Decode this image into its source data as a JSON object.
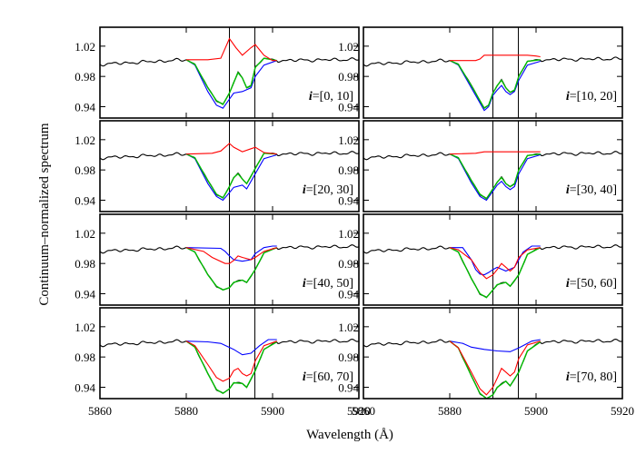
{
  "figure": {
    "ylabel": "Continuum–normalized spectrum",
    "xlabel": "Wavelength (Å)"
  },
  "chart_data": {
    "type": "line",
    "xlim": [
      5860,
      5920
    ],
    "ylim": [
      0.925,
      1.045
    ],
    "x_ticks": [
      5860,
      5880,
      5900,
      5920
    ],
    "x_tick_labels": [
      "5860",
      "5880",
      "5900",
      "5920"
    ],
    "y_ticks": [
      0.94,
      0.98,
      1.02
    ],
    "y_tick_labels": [
      "0.94",
      "0.98",
      "1.02"
    ],
    "reference_lines_x": [
      5890.0,
      5895.9
    ],
    "series_colors": {
      "observed": "#000000",
      "model": "#00bb00",
      "component_red": "#ff0000",
      "component_blue": "#0000ff"
    },
    "panels": [
      {
        "label_prefix": "i",
        "label_range": "=[0, 10]",
        "col": 0,
        "row": 0,
        "red": [
          [
            5880,
            1.002
          ],
          [
            5885,
            1.002
          ],
          [
            5888,
            1.004
          ],
          [
            5890,
            1.03
          ],
          [
            5891.5,
            1.018
          ],
          [
            5893,
            1.008
          ],
          [
            5895,
            1.018
          ],
          [
            5896,
            1.022
          ],
          [
            5898,
            1.008
          ],
          [
            5900,
            1.001
          ],
          [
            5901,
            1.001
          ]
        ],
        "blue": [
          [
            5880,
            1.002
          ],
          [
            5882,
            0.995
          ],
          [
            5885,
            0.96
          ],
          [
            5887,
            0.942
          ],
          [
            5888.5,
            0.938
          ],
          [
            5890,
            0.95
          ],
          [
            5891,
            0.958
          ],
          [
            5893,
            0.96
          ],
          [
            5895,
            0.965
          ],
          [
            5896,
            0.98
          ],
          [
            5898,
            0.995
          ],
          [
            5901,
            1.001
          ]
        ],
        "green": [
          [
            5880,
            1.002
          ],
          [
            5882,
            0.996
          ],
          [
            5885,
            0.965
          ],
          [
            5887,
            0.948
          ],
          [
            5888.5,
            0.943
          ],
          [
            5890,
            0.958
          ],
          [
            5891,
            0.972
          ],
          [
            5892,
            0.985
          ],
          [
            5893,
            0.978
          ],
          [
            5894,
            0.965
          ],
          [
            5895,
            0.968
          ],
          [
            5896,
            0.992
          ],
          [
            5898,
            1.004
          ],
          [
            5901,
            1.001
          ]
        ]
      },
      {
        "label_prefix": "i",
        "label_range": "=[10, 20]",
        "col": 1,
        "row": 0,
        "red": [
          [
            5880,
            1.001
          ],
          [
            5886,
            1.001
          ],
          [
            5887,
            1.003
          ],
          [
            5888,
            1.008
          ],
          [
            5898,
            1.008
          ],
          [
            5900,
            1.007
          ],
          [
            5901,
            1.006
          ]
        ],
        "blue": [
          [
            5880,
            1.001
          ],
          [
            5882,
            0.995
          ],
          [
            5885,
            0.965
          ],
          [
            5887,
            0.945
          ],
          [
            5888,
            0.935
          ],
          [
            5889,
            0.94
          ],
          [
            5890,
            0.955
          ],
          [
            5891,
            0.962
          ],
          [
            5892,
            0.968
          ],
          [
            5893,
            0.96
          ],
          [
            5894,
            0.956
          ],
          [
            5895,
            0.96
          ],
          [
            5896,
            0.975
          ],
          [
            5898,
            0.995
          ],
          [
            5901,
            1.0
          ]
        ],
        "green": [
          [
            5880,
            1.001
          ],
          [
            5882,
            0.996
          ],
          [
            5885,
            0.968
          ],
          [
            5887,
            0.948
          ],
          [
            5888,
            0.938
          ],
          [
            5889,
            0.942
          ],
          [
            5890,
            0.958
          ],
          [
            5891,
            0.968
          ],
          [
            5892,
            0.975
          ],
          [
            5893,
            0.965
          ],
          [
            5894,
            0.959
          ],
          [
            5895,
            0.962
          ],
          [
            5896,
            0.98
          ],
          [
            5898,
            1.0
          ],
          [
            5901,
            1.002
          ]
        ]
      },
      {
        "label_prefix": "i",
        "label_range": "=[20, 30]",
        "col": 0,
        "row": 1,
        "red": [
          [
            5880,
            1.001
          ],
          [
            5886,
            1.002
          ],
          [
            5888,
            1.005
          ],
          [
            5890,
            1.015
          ],
          [
            5891,
            1.01
          ],
          [
            5893,
            1.004
          ],
          [
            5895,
            1.008
          ],
          [
            5896,
            1.01
          ],
          [
            5898,
            1.003
          ],
          [
            5901,
            1.001
          ]
        ],
        "blue": [
          [
            5880,
            1.001
          ],
          [
            5882,
            0.995
          ],
          [
            5885,
            0.962
          ],
          [
            5887,
            0.945
          ],
          [
            5888.5,
            0.94
          ],
          [
            5890,
            0.95
          ],
          [
            5891,
            0.957
          ],
          [
            5893,
            0.96
          ],
          [
            5894,
            0.955
          ],
          [
            5896,
            0.975
          ],
          [
            5898,
            0.995
          ],
          [
            5901,
            1.0
          ]
        ],
        "green": [
          [
            5880,
            1.001
          ],
          [
            5882,
            0.996
          ],
          [
            5885,
            0.966
          ],
          [
            5887,
            0.948
          ],
          [
            5888.5,
            0.943
          ],
          [
            5890,
            0.958
          ],
          [
            5891,
            0.97
          ],
          [
            5892,
            0.975
          ],
          [
            5893,
            0.968
          ],
          [
            5894,
            0.962
          ],
          [
            5896,
            0.982
          ],
          [
            5898,
            1.002
          ],
          [
            5901,
            1.001
          ]
        ]
      },
      {
        "label_prefix": "i",
        "label_range": "=[30, 40]",
        "col": 1,
        "row": 1,
        "red": [
          [
            5880,
            1.001
          ],
          [
            5886,
            1.002
          ],
          [
            5888,
            1.004
          ],
          [
            5898,
            1.004
          ],
          [
            5901,
            1.004
          ]
        ],
        "blue": [
          [
            5880,
            1.001
          ],
          [
            5882,
            0.995
          ],
          [
            5885,
            0.963
          ],
          [
            5887,
            0.945
          ],
          [
            5888.5,
            0.94
          ],
          [
            5890,
            0.952
          ],
          [
            5891,
            0.96
          ],
          [
            5892,
            0.965
          ],
          [
            5893,
            0.958
          ],
          [
            5894,
            0.954
          ],
          [
            5895,
            0.958
          ],
          [
            5896,
            0.975
          ],
          [
            5898,
            0.995
          ],
          [
            5901,
            1.0
          ]
        ],
        "green": [
          [
            5880,
            1.001
          ],
          [
            5882,
            0.996
          ],
          [
            5885,
            0.966
          ],
          [
            5887,
            0.948
          ],
          [
            5888.5,
            0.942
          ],
          [
            5890,
            0.955
          ],
          [
            5891,
            0.964
          ],
          [
            5892,
            0.97
          ],
          [
            5893,
            0.962
          ],
          [
            5894,
            0.958
          ],
          [
            5895,
            0.962
          ],
          [
            5896,
            0.98
          ],
          [
            5898,
            0.999
          ],
          [
            5901,
            1.001
          ]
        ]
      },
      {
        "label_prefix": "i",
        "label_range": "=[40, 50]",
        "col": 0,
        "row": 2,
        "red": [
          [
            5880,
            1.001
          ],
          [
            5884,
            0.996
          ],
          [
            5886,
            0.988
          ],
          [
            5889,
            0.98
          ],
          [
            5890,
            0.98
          ],
          [
            5891,
            0.984
          ],
          [
            5892,
            0.99
          ],
          [
            5893,
            0.988
          ],
          [
            5895,
            0.985
          ],
          [
            5896,
            0.988
          ],
          [
            5898,
            0.996
          ],
          [
            5901,
            1.001
          ]
        ],
        "blue": [
          [
            5880,
            1.001
          ],
          [
            5888,
            1.0
          ],
          [
            5889,
            0.996
          ],
          [
            5890,
            0.99
          ],
          [
            5891,
            0.985
          ],
          [
            5893,
            0.983
          ],
          [
            5895,
            0.985
          ],
          [
            5896,
            0.993
          ],
          [
            5898,
            1.001
          ],
          [
            5900,
            1.003
          ],
          [
            5901,
            1.003
          ]
        ],
        "green": [
          [
            5880,
            1.001
          ],
          [
            5882,
            0.995
          ],
          [
            5885,
            0.965
          ],
          [
            5887,
            0.95
          ],
          [
            5888.5,
            0.945
          ],
          [
            5890,
            0.948
          ],
          [
            5891,
            0.955
          ],
          [
            5893,
            0.958
          ],
          [
            5894,
            0.955
          ],
          [
            5896,
            0.972
          ],
          [
            5898,
            0.994
          ],
          [
            5901,
            1.001
          ]
        ]
      },
      {
        "label_prefix": "i",
        "label_range": "=[50, 60]",
        "col": 1,
        "row": 2,
        "red": [
          [
            5880,
            1.001
          ],
          [
            5882,
            0.998
          ],
          [
            5885,
            0.985
          ],
          [
            5887,
            0.968
          ],
          [
            5888.5,
            0.96
          ],
          [
            5890,
            0.965
          ],
          [
            5891,
            0.972
          ],
          [
            5892,
            0.98
          ],
          [
            5893,
            0.975
          ],
          [
            5894,
            0.97
          ],
          [
            5895,
            0.975
          ],
          [
            5896,
            0.988
          ],
          [
            5898,
            0.998
          ],
          [
            5901,
            1.001
          ]
        ],
        "blue": [
          [
            5880,
            1.001
          ],
          [
            5883,
            1.001
          ],
          [
            5885,
            0.985
          ],
          [
            5886,
            0.972
          ],
          [
            5887,
            0.966
          ],
          [
            5888,
            0.965
          ],
          [
            5889,
            0.968
          ],
          [
            5890,
            0.972
          ],
          [
            5891,
            0.975
          ],
          [
            5893,
            0.97
          ],
          [
            5895,
            0.975
          ],
          [
            5897,
            0.995
          ],
          [
            5899,
            1.003
          ],
          [
            5901,
            1.003
          ]
        ],
        "green": [
          [
            5880,
            1.001
          ],
          [
            5882,
            0.995
          ],
          [
            5885,
            0.96
          ],
          [
            5887,
            0.94
          ],
          [
            5888.5,
            0.935
          ],
          [
            5890,
            0.945
          ],
          [
            5891,
            0.952
          ],
          [
            5893,
            0.955
          ],
          [
            5894,
            0.95
          ],
          [
            5896,
            0.965
          ],
          [
            5898,
            0.992
          ],
          [
            5901,
            1.001
          ]
        ]
      },
      {
        "label_prefix": "i",
        "label_range": "=[60, 70]",
        "col": 0,
        "row": 3,
        "red": [
          [
            5880,
            1.001
          ],
          [
            5882,
            0.995
          ],
          [
            5885,
            0.97
          ],
          [
            5887,
            0.953
          ],
          [
            5888.5,
            0.948
          ],
          [
            5890,
            0.952
          ],
          [
            5891,
            0.962
          ],
          [
            5892,
            0.965
          ],
          [
            5893,
            0.958
          ],
          [
            5894,
            0.955
          ],
          [
            5895,
            0.958
          ],
          [
            5896,
            0.975
          ],
          [
            5898,
            0.995
          ],
          [
            5901,
            1.001
          ]
        ],
        "blue": [
          [
            5880,
            1.001
          ],
          [
            5885,
            1.0
          ],
          [
            5888,
            0.998
          ],
          [
            5891,
            0.99
          ],
          [
            5893,
            0.983
          ],
          [
            5895,
            0.985
          ],
          [
            5897,
            0.995
          ],
          [
            5899,
            1.003
          ],
          [
            5901,
            1.003
          ]
        ],
        "green": [
          [
            5880,
            1.001
          ],
          [
            5882,
            0.993
          ],
          [
            5885,
            0.958
          ],
          [
            5887,
            0.937
          ],
          [
            5888.5,
            0.932
          ],
          [
            5890,
            0.938
          ],
          [
            5891,
            0.946
          ],
          [
            5893,
            0.945
          ],
          [
            5894,
            0.94
          ],
          [
            5896,
            0.962
          ],
          [
            5898,
            0.99
          ],
          [
            5901,
            1.0
          ]
        ]
      },
      {
        "label_prefix": "i",
        "label_range": "=[70, 80]",
        "col": 1,
        "row": 3,
        "red": [
          [
            5880,
            1.001
          ],
          [
            5882,
            0.992
          ],
          [
            5885,
            0.96
          ],
          [
            5887,
            0.938
          ],
          [
            5888.5,
            0.93
          ],
          [
            5890,
            0.94
          ],
          [
            5891,
            0.952
          ],
          [
            5892,
            0.965
          ],
          [
            5893,
            0.96
          ],
          [
            5894,
            0.955
          ],
          [
            5895,
            0.96
          ],
          [
            5896,
            0.978
          ],
          [
            5898,
            0.996
          ],
          [
            5901,
            1.001
          ]
        ],
        "blue": [
          [
            5880,
            1.001
          ],
          [
            5883,
            0.998
          ],
          [
            5885,
            0.993
          ],
          [
            5888,
            0.99
          ],
          [
            5891,
            0.988
          ],
          [
            5894,
            0.987
          ],
          [
            5896,
            0.992
          ],
          [
            5899,
            1.001
          ],
          [
            5901,
            1.003
          ]
        ],
        "green": [
          [
            5880,
            1.001
          ],
          [
            5882,
            0.992
          ],
          [
            5885,
            0.955
          ],
          [
            5887,
            0.932
          ],
          [
            5888.5,
            0.925
          ],
          [
            5890,
            0.93
          ],
          [
            5891,
            0.94
          ],
          [
            5893,
            0.948
          ],
          [
            5894,
            0.942
          ],
          [
            5896,
            0.96
          ],
          [
            5898,
            0.988
          ],
          [
            5901,
            1.0
          ]
        ]
      }
    ]
  }
}
